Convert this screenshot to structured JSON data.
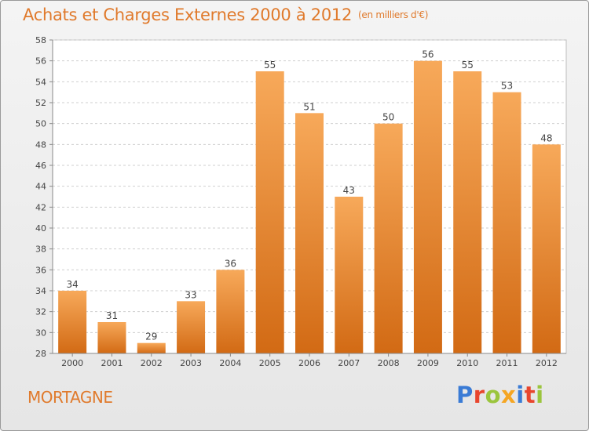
{
  "title": {
    "main": "Achats et Charges Externes 2000 à 2012",
    "unit": "(en milliers d'€)"
  },
  "location": "MORTAGNE",
  "logo": {
    "text": "Proxiti",
    "letters": [
      {
        "char": "P",
        "color": "#3a7bd5"
      },
      {
        "char": "r",
        "color": "#e8462e"
      },
      {
        "char": "o",
        "color": "#9bc53d"
      },
      {
        "char": "x",
        "color": "#f5a623"
      },
      {
        "char": "i",
        "color": "#3a7bd5"
      },
      {
        "char": "t",
        "color": "#e8462e"
      },
      {
        "char": "i",
        "color": "#9bc53d"
      }
    ]
  },
  "colors": {
    "accent": "#e07a2c",
    "bar_top": "#f7a95a",
    "bar_bottom": "#d26a14",
    "grid": "#cfcfcf",
    "text": "#444444"
  },
  "chart_data": {
    "type": "bar",
    "categories": [
      "2000",
      "2001",
      "2002",
      "2003",
      "2004",
      "2005",
      "2006",
      "2007",
      "2008",
      "2009",
      "2010",
      "2011",
      "2012"
    ],
    "values": [
      34,
      31,
      29,
      33,
      36,
      55,
      51,
      43,
      50,
      56,
      55,
      53,
      48
    ],
    "ylim": [
      28,
      58
    ],
    "yticks": [
      28,
      30,
      32,
      34,
      36,
      38,
      40,
      42,
      44,
      46,
      48,
      50,
      52,
      54,
      56,
      58
    ],
    "grid": true,
    "data_labels": true
  }
}
